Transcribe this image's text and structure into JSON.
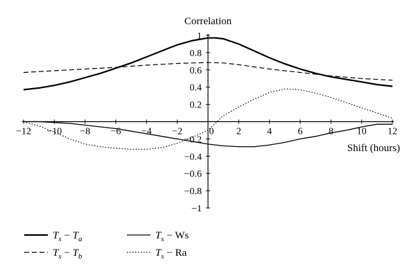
{
  "chart_data": {
    "type": "line",
    "ylabel": "Correlation",
    "xlabel": "Shift (hours)",
    "xlim": [
      -12,
      12
    ],
    "ylim": [
      -1,
      1
    ],
    "x_ticks": [
      -12,
      -10,
      -8,
      -6,
      -4,
      -2,
      0,
      2,
      4,
      6,
      8,
      10,
      12
    ],
    "x_tick_labels": [
      "−12",
      "−10",
      "−8",
      "−6",
      "−4",
      "−2",
      "0",
      "2",
      "4",
      "6",
      "8",
      "10",
      "12"
    ],
    "y_ticks": [
      1,
      0.8,
      0.6,
      0.4,
      0.2,
      0,
      -0.2,
      -0.4,
      -0.6,
      -0.8,
      -1
    ],
    "y_tick_labels": [
      "1",
      "0.8",
      "0.6",
      "0.4",
      "0.2",
      "0",
      "−0.2",
      "−0.4",
      "−0.6",
      "−0.8",
      "−1"
    ],
    "grid": false,
    "legend_position": "bottom-left",
    "series": [
      {
        "name": "Ts − Ta",
        "legend": {
          "a": "T",
          "a_sub": "s",
          "sep": " − ",
          "b": "T",
          "b_sub": "a"
        },
        "style": "solid-thick",
        "x": [
          -12,
          -11,
          -10,
          -9,
          -8,
          -7,
          -6,
          -5,
          -4,
          -3,
          -2,
          -1,
          0,
          0.5,
          1,
          2,
          3,
          4,
          5,
          6,
          7,
          8,
          9,
          10,
          11,
          12
        ],
        "y": [
          0.37,
          0.39,
          0.42,
          0.46,
          0.51,
          0.56,
          0.62,
          0.68,
          0.75,
          0.82,
          0.89,
          0.94,
          0.97,
          0.97,
          0.96,
          0.9,
          0.82,
          0.74,
          0.67,
          0.61,
          0.56,
          0.52,
          0.49,
          0.46,
          0.43,
          0.41
        ]
      },
      {
        "name": "Ts − Tb",
        "legend": {
          "a": "T",
          "a_sub": "s",
          "sep": " − ",
          "b": "T",
          "b_sub": "b"
        },
        "style": "dashed",
        "x": [
          -12,
          -10,
          -8,
          -6,
          -4,
          -2,
          0,
          1,
          2,
          4,
          6,
          8,
          10,
          12
        ],
        "y": [
          0.57,
          0.59,
          0.61,
          0.63,
          0.655,
          0.675,
          0.685,
          0.68,
          0.66,
          0.61,
          0.57,
          0.53,
          0.5,
          0.48
        ]
      },
      {
        "name": "Ts − Ws",
        "legend": {
          "a": "T",
          "a_sub": "s",
          "sep": " − ",
          "b": "Ws",
          "b_sub": ""
        },
        "style": "solid-thin",
        "x": [
          -12,
          -11,
          -10,
          -9,
          -8,
          -7,
          -6,
          -5,
          -4,
          -3,
          -2,
          -1,
          0,
          1,
          2,
          3,
          4,
          5,
          6,
          7,
          8,
          9,
          10,
          11,
          12
        ],
        "y": [
          0.0,
          0.0,
          -0.01,
          -0.02,
          -0.04,
          -0.06,
          -0.08,
          -0.11,
          -0.14,
          -0.17,
          -0.2,
          -0.23,
          -0.26,
          -0.28,
          -0.29,
          -0.29,
          -0.27,
          -0.24,
          -0.2,
          -0.17,
          -0.13,
          -0.1,
          -0.06,
          -0.03,
          -0.03
        ]
      },
      {
        "name": "Ts − Ra",
        "legend": {
          "a": "T",
          "a_sub": "s",
          "sep": " − ",
          "b": "Ra",
          "b_sub": ""
        },
        "style": "dotted",
        "x": [
          -12,
          -11,
          -10,
          -9,
          -8,
          -7,
          -6,
          -5,
          -4,
          -3,
          -2,
          -1,
          0,
          1,
          2,
          3,
          4,
          5,
          6,
          7,
          8,
          9,
          10,
          11,
          12
        ],
        "y": [
          0.0,
          -0.05,
          -0.12,
          -0.2,
          -0.26,
          -0.29,
          -0.31,
          -0.32,
          -0.32,
          -0.3,
          -0.25,
          -0.18,
          -0.1,
          0.07,
          0.17,
          0.26,
          0.34,
          0.38,
          0.37,
          0.33,
          0.28,
          0.22,
          0.16,
          0.1,
          0.04
        ]
      }
    ]
  }
}
